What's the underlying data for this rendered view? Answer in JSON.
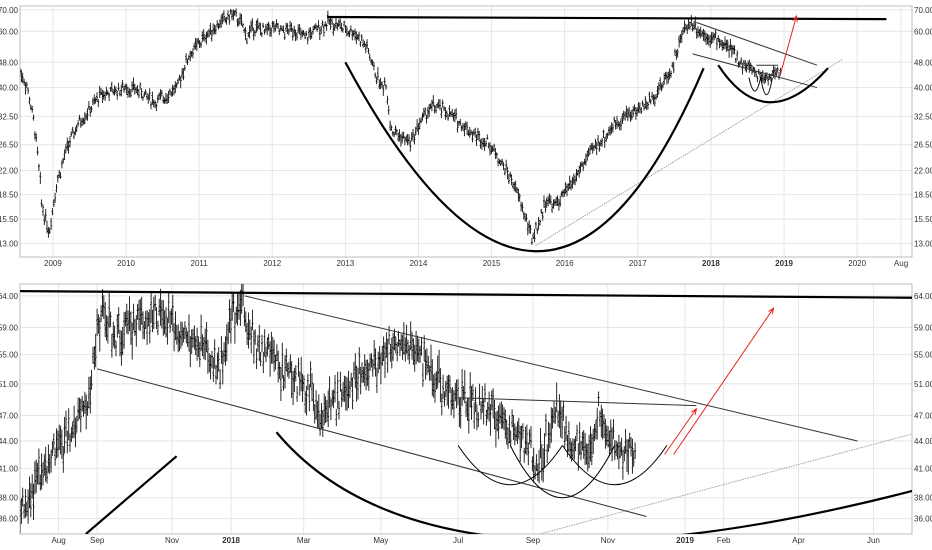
{
  "chart_data": [
    {
      "type": "line",
      "subtype": "ohlc-bar",
      "panel": "top",
      "title": "",
      "xlabel": "",
      "ylabel": "",
      "y_scale": "log",
      "ylim": [
        11.8,
        72
      ],
      "xlim": [
        2008.55,
        2020.75
      ],
      "y_ticks": [
        13,
        15.5,
        18.5,
        22,
        26.5,
        32.5,
        40,
        48,
        60,
        70
      ],
      "y_tick_labels": [
        "13.00",
        "15.50",
        "18.50",
        "22.00",
        "26.50",
        "32.50",
        "40.00",
        "48.00",
        "60.00",
        "70.00"
      ],
      "x_ticks": [
        {
          "x": 2009.0,
          "label": "2009"
        },
        {
          "x": 2010.0,
          "label": "2010"
        },
        {
          "x": 2011.0,
          "label": "2011"
        },
        {
          "x": 2012.0,
          "label": "2012"
        },
        {
          "x": 2013.0,
          "label": "2013"
        },
        {
          "x": 2014.0,
          "label": "2014"
        },
        {
          "x": 2015.0,
          "label": "2015"
        },
        {
          "x": 2016.0,
          "label": "2016"
        },
        {
          "x": 2017.0,
          "label": "2017"
        },
        {
          "x": 2018.0,
          "label": "2018",
          "bold": true
        },
        {
          "x": 2019.0,
          "label": "2019",
          "bold": true
        },
        {
          "x": 2020.0,
          "label": "2020"
        },
        {
          "x": 2020.6,
          "label": "Aug"
        }
      ],
      "price": {
        "x": [
          2008.55,
          2008.65,
          2008.75,
          2008.85,
          2008.95,
          2009.05,
          2009.2,
          2009.35,
          2009.5,
          2009.65,
          2009.8,
          2010.0,
          2010.2,
          2010.4,
          2010.55,
          2010.7,
          2010.85,
          2011.0,
          2011.15,
          2011.3,
          2011.45,
          2011.55,
          2011.65,
          2011.75,
          2011.9,
          2012.0,
          2012.15,
          2012.3,
          2012.45,
          2012.6,
          2012.75,
          2012.9,
          2013.0,
          2013.1,
          2013.2,
          2013.3,
          2013.4,
          2013.5,
          2013.55,
          2013.62,
          2013.75,
          2013.9,
          2014.05,
          2014.2,
          2014.35,
          2014.5,
          2014.65,
          2014.8,
          2014.95,
          2015.1,
          2015.2,
          2015.3,
          2015.45,
          2015.55,
          2015.65,
          2015.75,
          2015.85,
          2015.95,
          2016.1,
          2016.25,
          2016.4,
          2016.55,
          2016.7,
          2016.85,
          2017.0,
          2017.15,
          2017.3,
          2017.45,
          2017.55,
          2017.65,
          2017.75,
          2017.85,
          2017.95,
          2018.05,
          2018.15,
          2018.25,
          2018.35,
          2018.45,
          2018.55,
          2018.65,
          2018.75,
          2018.85,
          2018.95
        ],
        "y": [
          45,
          40,
          30,
          17,
          14,
          20,
          26,
          31,
          34,
          38,
          39,
          40,
          39,
          36,
          38,
          40,
          50,
          55,
          60,
          64,
          68,
          65,
          58,
          62,
          60,
          62,
          60,
          61,
          57,
          61,
          64,
          63,
          61,
          60,
          57,
          53,
          45,
          40,
          42,
          30,
          28,
          27,
          32,
          35,
          34,
          32,
          30,
          28,
          27,
          24,
          22,
          20,
          16,
          13.5,
          15,
          18,
          17,
          18,
          20,
          23,
          26,
          28,
          31,
          33,
          34,
          36,
          40,
          45,
          53,
          62,
          64,
          60,
          58,
          57,
          55,
          53,
          50,
          47,
          46,
          44,
          43,
          44,
          45
        ]
      },
      "annotations": {
        "resistance": {
          "x": [
            2012.75,
            2020.4
          ],
          "y": [
            66.5,
            65.5
          ]
        },
        "big_cup": {
          "x": [
            2013.0,
            2015.6,
            2017.9
          ],
          "y": [
            48,
            12.3,
            46
          ]
        },
        "small_cup": {
          "x": [
            2018.1,
            2018.8,
            2019.6
          ],
          "y": [
            47,
            36,
            46
          ]
        },
        "support": {
          "x": [
            2015.6,
            2019.8
          ],
          "y": [
            12.8,
            49
          ]
        },
        "channel_upper": {
          "x": [
            2017.8,
            2019.45
          ],
          "y": [
            64,
            47
          ]
        },
        "channel_lower": {
          "x": [
            2017.75,
            2019.45
          ],
          "y": [
            51,
            40
          ]
        },
        "mini_cups": [
          {
            "x": [
              2018.52,
              2018.6,
              2018.68
            ],
            "y": [
              43,
              39,
              43
            ]
          },
          {
            "x": [
              2018.68,
              2018.76,
              2018.84
            ],
            "y": [
              43,
              38,
              43
            ]
          }
        ],
        "breakout_line": {
          "x": [
            2018.62,
            2018.92
          ],
          "y": [
            47,
            47
          ]
        },
        "target_arrow": {
          "x": [
            2018.95,
            2019.17
          ],
          "y": [
            44,
            67
          ]
        }
      }
    },
    {
      "type": "line",
      "subtype": "ohlc-bar",
      "panel": "bottom",
      "title": "",
      "xlabel": "",
      "ylabel": "",
      "y_scale": "log",
      "ylim": [
        34.6,
        66
      ],
      "xlim": [
        2017.535,
        2019.5
      ],
      "y_ticks": [
        36,
        38,
        41,
        44,
        47,
        51,
        55,
        59,
        64
      ],
      "y_tick_labels": [
        "36.00",
        "38.00",
        "41.00",
        "44.00",
        "47.00",
        "51.00",
        "55.00",
        "59.00",
        "64.00"
      ],
      "x_ticks": [
        {
          "x": 2017.62,
          "label": "Aug"
        },
        {
          "x": 2017.705,
          "label": "Sep"
        },
        {
          "x": 2017.87,
          "label": "Nov"
        },
        {
          "x": 2018.0,
          "label": "2018",
          "bold": true
        },
        {
          "x": 2018.16,
          "label": "Mar"
        },
        {
          "x": 2018.33,
          "label": "May"
        },
        {
          "x": 2018.5,
          "label": "Jul"
        },
        {
          "x": 2018.665,
          "label": "Sep"
        },
        {
          "x": 2018.83,
          "label": "Nov"
        },
        {
          "x": 2019.0,
          "label": "2019",
          "bold": true
        },
        {
          "x": 2019.085,
          "label": "Feb"
        },
        {
          "x": 2019.25,
          "label": "Apr"
        },
        {
          "x": 2019.415,
          "label": "Jun"
        }
      ],
      "price": {
        "x": [
          2017.535,
          2017.56,
          2017.585,
          2017.61,
          2017.64,
          2017.665,
          2017.69,
          2017.705,
          2017.72,
          2017.74,
          2017.76,
          2017.79,
          2017.82,
          2017.85,
          2017.88,
          2017.91,
          2017.94,
          2017.965,
          2017.99,
          2018.0,
          2018.02,
          2018.04,
          2018.06,
          2018.085,
          2018.11,
          2018.135,
          2018.16,
          2018.18,
          2018.2,
          2018.22,
          2018.24,
          2018.26,
          2018.29,
          2018.32,
          2018.35,
          2018.38,
          2018.41,
          2018.44,
          2018.47,
          2018.5,
          2018.53,
          2018.56,
          2018.58,
          2018.6,
          2018.625,
          2018.65,
          2018.67,
          2018.69,
          2018.71,
          2018.73,
          2018.75,
          2018.77,
          2018.79,
          2018.81,
          2018.83,
          2018.85,
          2018.87,
          2018.89
        ],
        "y": [
          36.5,
          38.5,
          40.5,
          42.5,
          44.5,
          47,
          50,
          58,
          62,
          57,
          58,
          60,
          61,
          60,
          59,
          57,
          56,
          53,
          55,
          61,
          63,
          60,
          56,
          55,
          53,
          52,
          51,
          50,
          47,
          48,
          49,
          51,
          53,
          54,
          56,
          57,
          55,
          53,
          50,
          49,
          48,
          48,
          47,
          46,
          45,
          43.5,
          42,
          43,
          48,
          46,
          44,
          43,
          42,
          48,
          45,
          44,
          43,
          43.5
        ]
      },
      "annotations": {
        "resistance": {
          "x": [
            2017.535,
            2019.5
          ],
          "y": [
            64.8,
            63.7
          ]
        },
        "channel_upper": {
          "x": [
            2018.03,
            2019.38
          ],
          "y": [
            64,
            44
          ]
        },
        "channel_lower": {
          "x": [
            2017.705,
            2018.915
          ],
          "y": [
            53,
            36.2
          ]
        },
        "inv_hs_neckline": {
          "x": [
            2018.5,
            2019.025
          ],
          "y": [
            49.2,
            48.2
          ]
        },
        "mini_cups": [
          {
            "x": [
              2018.5,
              2018.615,
              2018.73
            ],
            "y": [
              43.5,
              39.3,
              43.5
            ]
          },
          {
            "x": [
              2018.615,
              2018.73,
              2018.845
            ],
            "y": [
              43.5,
              38.0,
              43.5
            ]
          },
          {
            "x": [
              2018.73,
              2018.845,
              2018.96
            ],
            "y": [
              43.5,
              39.3,
              43.5
            ]
          }
        ],
        "small_cup_arc": {
          "x": [
            2018.1,
            2018.7,
            2019.75
          ],
          "y": [
            45,
            34.0,
            42
          ]
        },
        "big_cup_left_arm": {
          "x": [
            2017.68,
            2017.88
          ],
          "y": [
            34.6,
            42.3
          ]
        },
        "support": {
          "x": [
            2018.68,
            2019.5
          ],
          "y": [
            34.6,
            44.8
          ]
        },
        "target_arrow": {
          "x": [
            2018.975,
            2019.195
          ],
          "y": [
            42.5,
            62
          ]
        },
        "small_arrow": {
          "x": [
            2018.955,
            2019.025
          ],
          "y": [
            42.5,
            47.8
          ]
        }
      }
    }
  ]
}
